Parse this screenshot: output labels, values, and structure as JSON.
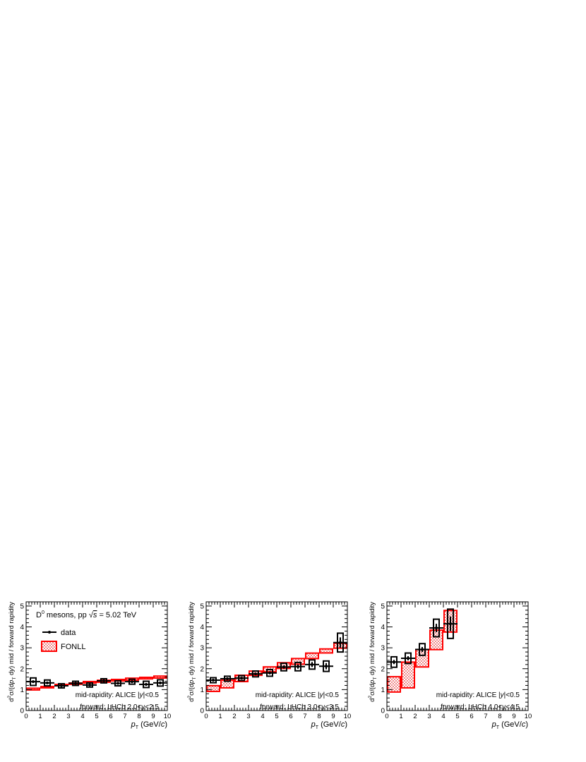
{
  "chart_data": [
    {
      "type": "bar",
      "x_edges": [
        0,
        1,
        2,
        3,
        4,
        5,
        6,
        7,
        8,
        9,
        10
      ],
      "xlim": [
        0,
        10
      ],
      "ylim": [
        0,
        5.2
      ],
      "yticks": [
        0,
        1,
        2,
        3,
        4,
        5
      ],
      "xticks": [
        0,
        1,
        2,
        3,
        4,
        5,
        6,
        7,
        8,
        9,
        10
      ],
      "xlabel": {
        "italic": "p",
        "sub": "T",
        "rest": " (GeV/",
        "c": "c",
        "end": ")"
      },
      "ylabel": "d²σ/(dp_T dy) mid / forward rapidity",
      "title": "D⁰ mesons, pp √s = 5.02 TeV",
      "legend": [
        {
          "label": "data"
        },
        {
          "label": "FONLL"
        }
      ],
      "annotations": [
        "mid-rapidity: ALICE |y|<0.5",
        "forward: LHCb 2.0<y<2.5"
      ],
      "data": {
        "x": [
          0.5,
          1.5,
          2.5,
          3.5,
          4.5,
          5.5,
          6.5,
          7.5,
          8.5,
          9.5
        ],
        "y": [
          1.38,
          1.32,
          1.18,
          1.3,
          1.22,
          1.42,
          1.3,
          1.38,
          1.25,
          1.32
        ],
        "sys_err": [
          0.18,
          0.14,
          0.1,
          0.1,
          0.1,
          0.1,
          0.12,
          0.12,
          0.15,
          0.15
        ],
        "stat_err": [
          0.05,
          0.04,
          0.04,
          0.04,
          0.04,
          0.04,
          0.05,
          0.05,
          0.06,
          0.06
        ]
      },
      "fonll": {
        "low": [
          0.95,
          1.05,
          1.15,
          1.22,
          1.28,
          1.32,
          1.38,
          1.42,
          1.48,
          1.52
        ],
        "high": [
          1.1,
          1.18,
          1.28,
          1.35,
          1.42,
          1.48,
          1.52,
          1.58,
          1.62,
          1.68
        ]
      }
    },
    {
      "type": "bar",
      "x_edges": [
        0,
        1,
        2,
        3,
        4,
        5,
        6,
        7,
        8,
        9,
        10
      ],
      "xlim": [
        0,
        10
      ],
      "ylim": [
        0,
        5.2
      ],
      "yticks": [
        0,
        1,
        2,
        3,
        4,
        5
      ],
      "xticks": [
        0,
        1,
        2,
        3,
        4,
        5,
        6,
        7,
        8,
        9,
        10
      ],
      "xlabel": {
        "italic": "p",
        "sub": "T",
        "rest": " (GeV/",
        "c": "c",
        "end": ")"
      },
      "ylabel": "d²σ/(dp_T dy) mid / forward rapidity",
      "annotations": [
        "mid-rapidity: ALICE |y|<0.5",
        "forward: LHCb 3.0<y<3.5"
      ],
      "data": {
        "x": [
          0.5,
          1.5,
          2.5,
          3.5,
          4.5,
          5.5,
          6.5,
          7.5,
          8.5,
          9.5
        ],
        "y": [
          1.45,
          1.52,
          1.55,
          1.75,
          1.8,
          2.08,
          2.1,
          2.2,
          2.12,
          3.25
        ],
        "sys_err": [
          0.12,
          0.12,
          0.12,
          0.14,
          0.16,
          0.18,
          0.2,
          0.22,
          0.25,
          0.45
        ],
        "stat_err": [
          0.05,
          0.05,
          0.05,
          0.06,
          0.07,
          0.08,
          0.1,
          0.12,
          0.15,
          0.25
        ]
      },
      "fonll": {
        "low": [
          0.88,
          1.05,
          1.35,
          1.65,
          1.82,
          1.98,
          2.18,
          2.45,
          2.72,
          2.95
        ],
        "high": [
          1.22,
          1.48,
          1.72,
          1.92,
          2.12,
          2.32,
          2.52,
          2.78,
          2.98,
          3.25
        ]
      }
    },
    {
      "type": "bar",
      "x_edges": [
        0,
        1,
        2,
        3,
        4,
        5
      ],
      "xlim": [
        0,
        10
      ],
      "ylim": [
        0,
        5.2
      ],
      "yticks": [
        0,
        1,
        2,
        3,
        4,
        5
      ],
      "xticks": [
        0,
        1,
        2,
        3,
        4,
        5,
        6,
        7,
        8,
        9,
        10
      ],
      "xlabel": {
        "italic": "p",
        "sub": "T",
        "rest": " (GeV/",
        "c": "c",
        "end": ")"
      },
      "ylabel": "d²σ/(dp_T dy) mid / forward rapidity",
      "annotations": [
        "mid-rapidity: ALICE |y|<0.5",
        "forward: LHCb 4.0<y<4.5"
      ],
      "data": {
        "x": [
          0.5,
          1.5,
          2.5,
          3.5,
          4.5
        ],
        "y": [
          2.32,
          2.5,
          2.92,
          3.95,
          4.15
        ],
        "sys_err": [
          0.25,
          0.25,
          0.28,
          0.42,
          0.7
        ],
        "stat_err": [
          0.1,
          0.1,
          0.12,
          0.2,
          0.35
        ]
      },
      "fonll": {
        "low": [
          0.85,
          1.05,
          2.05,
          2.88,
          3.72
        ],
        "high": [
          1.65,
          2.35,
          2.95,
          3.88,
          4.82
        ]
      }
    }
  ],
  "colors": {
    "data": "#000000",
    "fonll": "#ff0000",
    "fonll_fill": "#f3b0b0"
  }
}
